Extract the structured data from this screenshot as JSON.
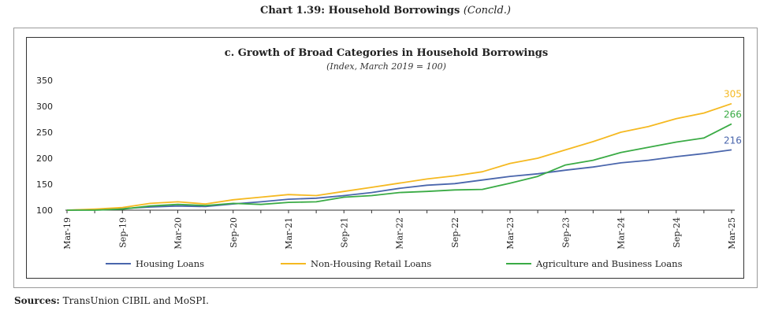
{
  "header": {
    "title_main": "Chart 1.39: Household Borrowings",
    "title_sub": "(Concld.)"
  },
  "footer": {
    "sources_label": "Sources:",
    "sources_text": "TransUnion CIBIL and MoSPI."
  },
  "chart_data": {
    "type": "line",
    "title": "c. Growth of Broad Categories in Household Borrowings",
    "subtitle": "(Index, March 2019 = 100)",
    "x": [
      "Mar-19",
      "Jun-19",
      "Sep-19",
      "Dec-19",
      "Mar-20",
      "Jun-20",
      "Sep-20",
      "Dec-20",
      "Mar-21",
      "Jun-21",
      "Sep-21",
      "Dec-21",
      "Mar-22",
      "Jun-22",
      "Sep-22",
      "Dec-22",
      "Mar-23",
      "Jun-23",
      "Sep-23",
      "Dec-23",
      "Mar-24",
      "Jun-24",
      "Sep-24",
      "Dec-24",
      "Mar-25"
    ],
    "x_tick_labels": [
      "Mar-19",
      "Sep-19",
      "Mar-20",
      "Sep-20",
      "Mar-21",
      "Sep-21",
      "Mar-22",
      "Sep-22",
      "Mar-23",
      "Sep-23",
      "Mar-24",
      "Sep-24",
      "Mar-25"
    ],
    "ylim": [
      100,
      350
    ],
    "yticks": [
      100,
      150,
      200,
      250,
      300,
      350
    ],
    "grid": false,
    "legend_position": "bottom",
    "series": [
      {
        "name": "Housing Loans",
        "color": "#4a66ac",
        "end_label": "216",
        "values": [
          100,
          101,
          103,
          106,
          108,
          107,
          112,
          116,
          121,
          123,
          128,
          134,
          142,
          148,
          151,
          158,
          165,
          170,
          177,
          183,
          191,
          196,
          203,
          209,
          216
        ]
      },
      {
        "name": "Non-Housing Retail Loans",
        "color": "#f5b921",
        "end_label": "305",
        "values": [
          100,
          102,
          105,
          113,
          116,
          112,
          120,
          125,
          130,
          128,
          136,
          144,
          152,
          160,
          166,
          174,
          190,
          200,
          216,
          232,
          250,
          261,
          276,
          287,
          305
        ]
      },
      {
        "name": "Agriculture and Business Loans",
        "color": "#3aab45",
        "end_label": "266",
        "values": [
          100,
          100,
          102,
          108,
          111,
          109,
          113,
          111,
          115,
          116,
          125,
          128,
          134,
          136,
          139,
          140,
          152,
          165,
          187,
          196,
          211,
          221,
          231,
          239,
          266
        ]
      }
    ]
  }
}
